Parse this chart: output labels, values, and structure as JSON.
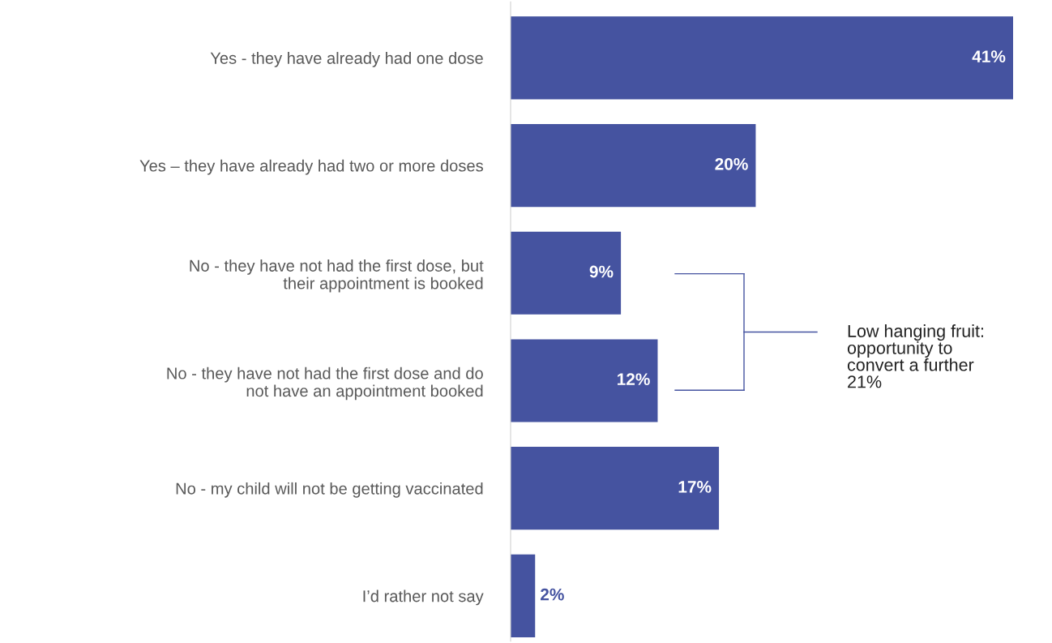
{
  "chart_data": {
    "type": "bar",
    "orientation": "horizontal",
    "categories": [
      "Yes - they have already had one dose",
      "Yes – they have already had two or more doses",
      "No - they have not had the first dose, but their appointment is booked",
      "No - they have not had the first dose and do not have an appointment booked",
      "No - my child will not be getting vaccinated",
      "I’d rather not say"
    ],
    "values": [
      41,
      20,
      9,
      12,
      17,
      2
    ],
    "value_labels": [
      "41%",
      "20%",
      "9%",
      "12%",
      "17%",
      "2%"
    ],
    "color": "#4553a0",
    "tick_labels": "y",
    "grid": false,
    "legend": false,
    "annotations": [
      "Low hanging fruit:\nopportunity to\nconvert a further\n21%"
    ]
  }
}
